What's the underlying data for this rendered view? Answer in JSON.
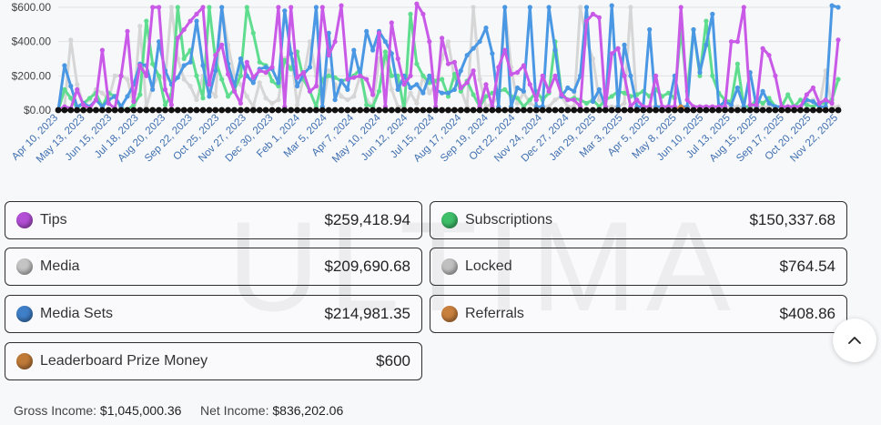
{
  "colors": {
    "tips": "#c95ae8",
    "subscriptions": "#5fdd8f",
    "media": "#d6d6d6",
    "media_sets": "#4a97e4",
    "locked": "#c8c8c8",
    "referrals": "#d9883e",
    "leaderboard": "#c8823e",
    "zero_line": "#111111"
  },
  "chart_data": {
    "type": "line",
    "title": "",
    "xlabel": "",
    "ylabel": "",
    "y_tick_labels": [
      "$0.00",
      "$200.00",
      "$400.00",
      "$600.00"
    ],
    "y_ticks": [
      0,
      200,
      400,
      600
    ],
    "ylim": [
      0,
      600
    ],
    "x_tick_labels": [
      "Apr 10, 2023",
      "May 13, 2023",
      "Jun 15, 2023",
      "Jul 18, 2023",
      "Aug 20, 2023",
      "Sep 22, 2023",
      "Oct 25, 2023",
      "Nov 27, 2023",
      "Dec 30, 2023",
      "Feb 1, 2024",
      "Mar 5, 2024",
      "Apr 7, 2024",
      "May 10, 2024",
      "Jun 12, 2024",
      "Jul 15, 2024",
      "Aug 17, 2024",
      "Sep 19, 2024",
      "Oct 22, 2024",
      "Nov 24, 2024",
      "Dec 27, 2024",
      "Jan 29, 2025",
      "Mar 3, 2025",
      "Apr 5, 2025",
      "May 8, 2025",
      "Jun 10, 2025",
      "Jul 13, 2025",
      "Aug 15, 2025",
      "Sep 17, 2025",
      "Oct 20, 2025",
      "Nov 22, 2025"
    ],
    "series": [
      {
        "name": "Tips",
        "color_key": "tips",
        "values": [
          0,
          20,
          10,
          120,
          30,
          10,
          60,
          350,
          40,
          10,
          200,
          460,
          50,
          260,
          200,
          600,
          600,
          120,
          30,
          420,
          470,
          520,
          560,
          600,
          150,
          320,
          380,
          210,
          110,
          40,
          280,
          190,
          230,
          220,
          250,
          600,
          20,
          600,
          190,
          220,
          110,
          140,
          600,
          320,
          400,
          610,
          180,
          190,
          200,
          180,
          90,
          450,
          20,
          510,
          300,
          150,
          200,
          620,
          560,
          400,
          20,
          420,
          270,
          280,
          130,
          160,
          230,
          20,
          150,
          20,
          250,
          350,
          210,
          220,
          260,
          150,
          60,
          200,
          110,
          200,
          90,
          60,
          60,
          20,
          520,
          560,
          540,
          20,
          330,
          360,
          200,
          20,
          60,
          20,
          20,
          200,
          20,
          20,
          20,
          600,
          60,
          20,
          20,
          20,
          20,
          20,
          20,
          400,
          400,
          600,
          30,
          30,
          360,
          320,
          200,
          20,
          20,
          20,
          20,
          90,
          130,
          40,
          60,
          40,
          410
        ]
      },
      {
        "name": "Subscriptions",
        "color_key": "subscriptions",
        "values": [
          0,
          120,
          70,
          10,
          40,
          70,
          100,
          20,
          100,
          80,
          10,
          0,
          30,
          90,
          520,
          270,
          200,
          30,
          90,
          600,
          300,
          350,
          200,
          70,
          600,
          290,
          180,
          80,
          120,
          200,
          600,
          450,
          280,
          260,
          170,
          140,
          290,
          240,
          340,
          180,
          110,
          20,
          180,
          200,
          190,
          170,
          180,
          200,
          240,
          30,
          20,
          110,
          340,
          200,
          200,
          0,
          560,
          270,
          200,
          160,
          170,
          180,
          80,
          210,
          110,
          170,
          90,
          20,
          80,
          100,
          110,
          120,
          80,
          70,
          20,
          60,
          110,
          60,
          100,
          400,
          100,
          60,
          70,
          60,
          40,
          60,
          20,
          60,
          80,
          110,
          100,
          80,
          90,
          110,
          80,
          120,
          80,
          100,
          70,
          470,
          110,
          470,
          200,
          520,
          200,
          100,
          60,
          50,
          270,
          20,
          20,
          60,
          40,
          70,
          20,
          20,
          90,
          20,
          60,
          30,
          20,
          40,
          40,
          60,
          180
        ]
      },
      {
        "name": "Media",
        "color_key": "media",
        "values": [
          0,
          20,
          410,
          150,
          30,
          60,
          120,
          100,
          60,
          200,
          200,
          180,
          30,
          490,
          20,
          140,
          200,
          180,
          600,
          300,
          180,
          140,
          60,
          200,
          120,
          80,
          600,
          380,
          200,
          150,
          80,
          20,
          160,
          70,
          40,
          60,
          300,
          330,
          30,
          190,
          400,
          200,
          20,
          230,
          150,
          80,
          60,
          80,
          200,
          60,
          20,
          300,
          300,
          120,
          20,
          20,
          100,
          40,
          200,
          100,
          150,
          300,
          400,
          180,
          120,
          20,
          600,
          180,
          20,
          40,
          80,
          600,
          250,
          40,
          100,
          40,
          20,
          20,
          20,
          60,
          80,
          20,
          20,
          600,
          400,
          300,
          60,
          20,
          20,
          20,
          40,
          600,
          20,
          20,
          20,
          20,
          20,
          20,
          20,
          20,
          20,
          20,
          20,
          20,
          20,
          20,
          20,
          20,
          20,
          20,
          20,
          20,
          20,
          20,
          20,
          20,
          20,
          20,
          20,
          40,
          60,
          20,
          230,
          20,
          20
        ]
      },
      {
        "name": "Media Sets",
        "color_key": "media_sets",
        "values": [
          0,
          260,
          140,
          20,
          40,
          20,
          60,
          20,
          60,
          80,
          20,
          80,
          150,
          270,
          260,
          120,
          400,
          230,
          150,
          190,
          260,
          280,
          520,
          260,
          80,
          230,
          600,
          270,
          140,
          300,
          200,
          160,
          240,
          250,
          240,
          160,
          580,
          330,
          140,
          210,
          250,
          600,
          20,
          450,
          60,
          170,
          120,
          350,
          200,
          460,
          350,
          460,
          400,
          330,
          120,
          200,
          130,
          150,
          100,
          200,
          120,
          100,
          100,
          120,
          230,
          320,
          360,
          400,
          480,
          330,
          20,
          600,
          20,
          130,
          110,
          600,
          20,
          20,
          600,
          350,
          80,
          130,
          110,
          200,
          600,
          50,
          120,
          20,
          610,
          20,
          380,
          200,
          20,
          20,
          470,
          20,
          20,
          20,
          200,
          20,
          20,
          470,
          220,
          380,
          560,
          20,
          50,
          30,
          130,
          20,
          220,
          20,
          110,
          40,
          20,
          20,
          20,
          20,
          20,
          60,
          50,
          20,
          20,
          610,
          600
        ]
      },
      {
        "name": "Locked",
        "color_key": "locked",
        "values": [
          0,
          0,
          0,
          0,
          0,
          0,
          0,
          0,
          0,
          0,
          0,
          0,
          0,
          0,
          0,
          0,
          0,
          0,
          0,
          0,
          0,
          0,
          0,
          0,
          0,
          0,
          0,
          0,
          0,
          0,
          0,
          0,
          0,
          0,
          0,
          0,
          0,
          0,
          0,
          0,
          0,
          0,
          0,
          0,
          0,
          0,
          0,
          0,
          0,
          0,
          0,
          0,
          0,
          0,
          0,
          0,
          0,
          0,
          0,
          0,
          0,
          0,
          0,
          0,
          0,
          0,
          0,
          0,
          0,
          0,
          0,
          0,
          0,
          0,
          0,
          0,
          0,
          0,
          0,
          0,
          0,
          0,
          0,
          0,
          0,
          0,
          0,
          0,
          0,
          0,
          0,
          0,
          0,
          0,
          0,
          0,
          0,
          0,
          0,
          0,
          0,
          0,
          0,
          0,
          0,
          0,
          0,
          0,
          0,
          0,
          0,
          0,
          0,
          0,
          0,
          0,
          0,
          0,
          0,
          0,
          0,
          0,
          0,
          0,
          0
        ]
      },
      {
        "name": "Referrals",
        "color_key": "referrals",
        "values": [
          0,
          0,
          0,
          0,
          0,
          0,
          0,
          0,
          0,
          0,
          0,
          0,
          0,
          0,
          0,
          0,
          0,
          0,
          0,
          0,
          0,
          0,
          0,
          0,
          0,
          0,
          0,
          0,
          0,
          0,
          0,
          0,
          0,
          0,
          0,
          0,
          0,
          0,
          0,
          0,
          0,
          0,
          0,
          0,
          0,
          0,
          0,
          0,
          0,
          0,
          0,
          0,
          0,
          0,
          0,
          0,
          0,
          0,
          0,
          0,
          0,
          0,
          0,
          0,
          0,
          0,
          0,
          0,
          0,
          0,
          0,
          0,
          0,
          0,
          0,
          0,
          0,
          0,
          0,
          0,
          0,
          0,
          0,
          0,
          0,
          0,
          0,
          0,
          0,
          0,
          0,
          0,
          0,
          0,
          0,
          0,
          0,
          0,
          0,
          20,
          0,
          0,
          0,
          0,
          0,
          0,
          0,
          0,
          0,
          0,
          0,
          0,
          0,
          0,
          0,
          0,
          0,
          0,
          0,
          0,
          0,
          0,
          0,
          0,
          0
        ]
      },
      {
        "name": "Zero baseline",
        "color_key": "zero_line",
        "values": [
          0,
          0,
          0,
          0,
          0,
          0,
          0,
          0,
          0,
          0,
          0,
          0,
          0,
          0,
          0,
          0,
          0,
          0,
          0,
          0,
          0,
          0,
          0,
          0,
          0,
          0,
          0,
          0,
          0,
          0,
          0,
          0,
          0,
          0,
          0,
          0,
          0,
          0,
          0,
          0,
          0,
          0,
          0,
          0,
          0,
          0,
          0,
          0,
          0,
          0,
          0,
          0,
          0,
          0,
          0,
          0,
          0,
          0,
          0,
          0,
          0,
          0,
          0,
          0,
          0,
          0,
          0,
          0,
          0,
          0,
          0,
          0,
          0,
          0,
          0,
          0,
          0,
          0,
          0,
          0,
          0,
          0,
          0,
          0,
          0,
          0,
          0,
          0,
          0,
          0,
          0,
          0,
          0,
          0,
          0,
          0,
          0,
          0,
          0,
          0,
          0,
          0,
          0,
          0,
          0,
          0,
          0,
          0,
          0,
          0,
          0,
          0,
          0,
          0,
          0,
          0,
          0,
          0,
          0,
          0,
          0,
          0,
          0,
          0,
          0
        ]
      }
    ]
  },
  "watermark": "ULTIMA",
  "cards": [
    {
      "label": "Tips",
      "amount": "$259,418.94",
      "color_key": "tips"
    },
    {
      "label": "Subscriptions",
      "amount": "$150,337.68",
      "color_key": "subscriptions"
    },
    {
      "label": "Media",
      "amount": "$209,690.68",
      "color_key": "media"
    },
    {
      "label": "Locked",
      "amount": "$764.54",
      "color_key": "locked"
    },
    {
      "label": "Media Sets",
      "amount": "$214,981.35",
      "color_key": "media_sets"
    },
    {
      "label": "Referrals",
      "amount": "$408.86",
      "color_key": "referrals"
    },
    {
      "label": "Leaderboard Prize Money",
      "amount": "$600",
      "color_key": "leaderboard"
    }
  ],
  "footer": {
    "gross_label": "Gross Income:",
    "gross_value": "$1,045,000.36",
    "net_label": "Net Income:",
    "net_value": "$836,202.06"
  },
  "scroll_top_icon": "chevron-up-icon"
}
